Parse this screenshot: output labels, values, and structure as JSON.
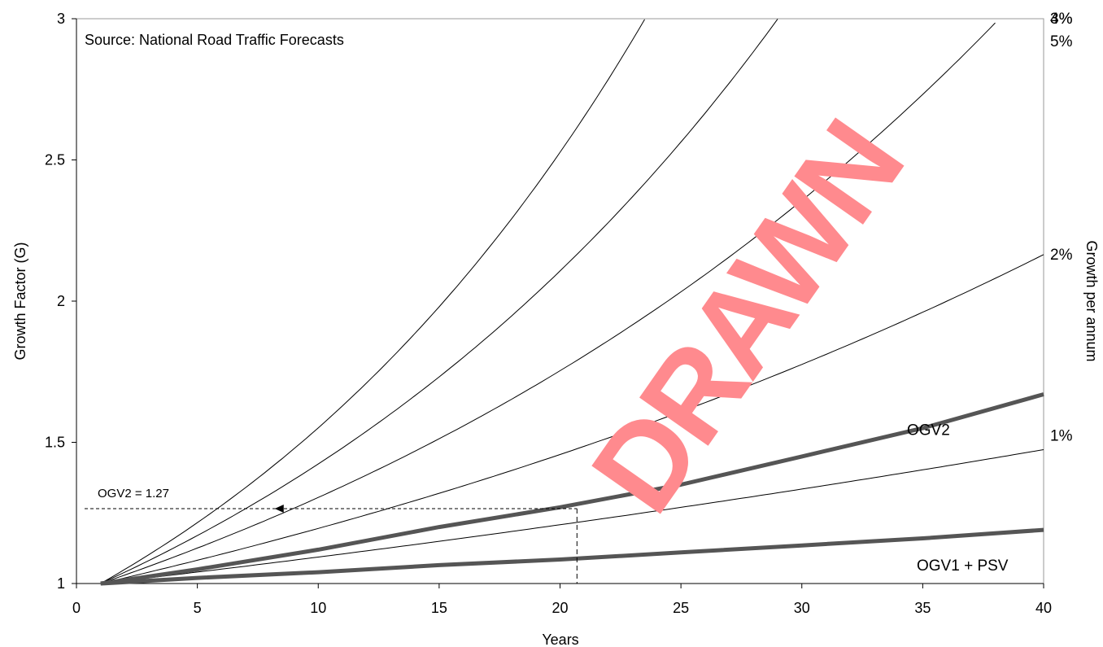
{
  "chart_data": {
    "type": "line",
    "source_note": "Source: National Road Traffic Forecasts",
    "xlabel": "Years",
    "ylabel": "Growth Factor (G)",
    "right_label": "Growth per annum",
    "xlim": [
      0,
      40
    ],
    "ylim": [
      1,
      3
    ],
    "x_ticks": [
      "0",
      "5",
      "10",
      "15",
      "20",
      "25",
      "30",
      "35",
      "40"
    ],
    "y_ticks": [
      "1",
      "1.5",
      "2",
      "2.5",
      "3"
    ],
    "grid": false,
    "rate_curves": [
      {
        "label": "5%",
        "rate": 0.05
      },
      {
        "label": "4%",
        "rate": 0.04
      },
      {
        "label": "3%",
        "rate": 0.03
      },
      {
        "label": "2%",
        "rate": 0.02
      },
      {
        "label": "1%",
        "rate": 0.01
      }
    ],
    "series": [
      {
        "name": "OGV2",
        "x": [
          1,
          5,
          10,
          15,
          20,
          25,
          30,
          35,
          40
        ],
        "values": [
          1.0,
          1.05,
          1.12,
          1.2,
          1.27,
          1.35,
          1.45,
          1.55,
          1.67
        ]
      },
      {
        "name": "OGV1 + PSV",
        "x": [
          1,
          5,
          10,
          15,
          20,
          25,
          30,
          35,
          40
        ],
        "values": [
          1.0,
          1.02,
          1.04,
          1.065,
          1.085,
          1.11,
          1.135,
          1.16,
          1.19
        ]
      }
    ],
    "annotation": {
      "text": "OGV2 = 1.27",
      "x": 20.7,
      "y": 1.265
    },
    "watermark": "DRAWN"
  }
}
